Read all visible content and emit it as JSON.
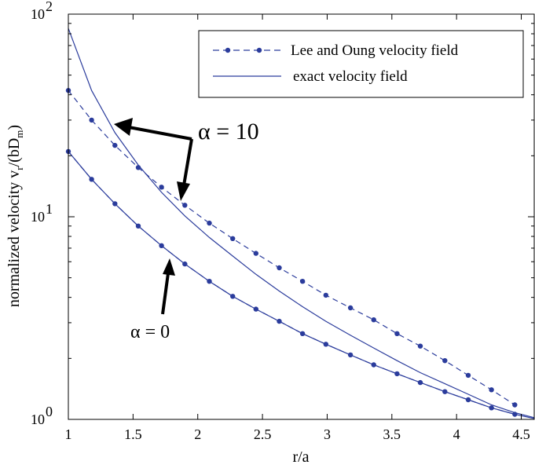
{
  "chart_data": {
    "type": "line",
    "title": "",
    "xlabel": "r/a",
    "ylabel": "normalized velocity v_r/(bD_m)",
    "xlim": [
      1,
      4.6
    ],
    "ylim": [
      1,
      100
    ],
    "yscale": "log",
    "grid": false,
    "legend_position": "top-right",
    "x_ticks": [
      1,
      1.5,
      2,
      2.5,
      3,
      3.5,
      4,
      4.5
    ],
    "x_tick_labels": [
      "1",
      "1.5",
      "2",
      "2.5",
      "3",
      "3.5",
      "4",
      "4.5"
    ],
    "y_ticks": [
      1,
      10,
      100
    ],
    "y_tick_labels": [
      {
        "base": "10",
        "exp": "0"
      },
      {
        "base": "10",
        "exp": "1"
      },
      {
        "base": "10",
        "exp": "2"
      }
    ],
    "legend": [
      {
        "label": "Lee and Oung velocity field",
        "style": "dashed-dots"
      },
      {
        "label": "exact velocity field",
        "style": "solid"
      }
    ],
    "series": [
      {
        "name": "Lee and Oung velocity field",
        "group": "α = 10",
        "style": "dashed-dots",
        "x": [
          1.0,
          1.18,
          1.36,
          1.54,
          1.72,
          1.9,
          2.09,
          2.27,
          2.45,
          2.63,
          2.81,
          2.99,
          3.18,
          3.36,
          3.54,
          3.72,
          3.91,
          4.09,
          4.27,
          4.45
        ],
        "y": [
          42.0,
          30.0,
          22.5,
          17.5,
          14.0,
          11.4,
          9.3,
          7.8,
          6.6,
          5.6,
          4.8,
          4.1,
          3.55,
          3.1,
          2.65,
          2.3,
          1.95,
          1.65,
          1.4,
          1.18
        ]
      },
      {
        "name": "exact velocity field",
        "group": "α = 10",
        "style": "solid",
        "x": [
          1.0,
          1.18,
          1.36,
          1.54,
          1.72,
          1.9,
          2.09,
          2.27,
          2.45,
          2.63,
          2.81,
          2.99,
          3.18,
          3.36,
          3.54,
          3.72,
          3.91,
          4.09,
          4.27,
          4.45,
          4.6
        ],
        "y": [
          85.0,
          42.0,
          26.0,
          18.0,
          13.2,
          10.1,
          7.9,
          6.4,
          5.2,
          4.3,
          3.6,
          3.05,
          2.6,
          2.25,
          1.95,
          1.7,
          1.5,
          1.33,
          1.18,
          1.08,
          1.02
        ]
      },
      {
        "name": "Lee and Oung velocity field",
        "group": "α = 0",
        "style": "dashed-dots",
        "x": [
          1.0,
          1.18,
          1.36,
          1.54,
          1.72,
          1.9,
          2.09,
          2.27,
          2.45,
          2.63,
          2.81,
          2.99,
          3.18,
          3.36,
          3.54,
          3.72,
          3.91,
          4.09,
          4.27,
          4.45
        ],
        "y": [
          21.0,
          15.3,
          11.6,
          9.0,
          7.2,
          5.85,
          4.8,
          4.05,
          3.5,
          3.05,
          2.65,
          2.35,
          2.08,
          1.86,
          1.68,
          1.52,
          1.37,
          1.25,
          1.14,
          1.06
        ]
      },
      {
        "name": "exact velocity field",
        "group": "α = 0",
        "style": "solid",
        "x": [
          1.0,
          1.18,
          1.36,
          1.54,
          1.72,
          1.9,
          2.09,
          2.27,
          2.45,
          2.63,
          2.81,
          2.99,
          3.18,
          3.36,
          3.54,
          3.72,
          3.91,
          4.09,
          4.27,
          4.45,
          4.6
        ],
        "y": [
          21.0,
          15.3,
          11.6,
          9.0,
          7.2,
          5.85,
          4.8,
          4.05,
          3.5,
          3.05,
          2.65,
          2.35,
          2.08,
          1.86,
          1.68,
          1.52,
          1.37,
          1.25,
          1.14,
          1.06,
          1.01
        ]
      }
    ],
    "annotations": [
      {
        "text": "α = 10",
        "size": "large",
        "arrow_targets": [
          {
            "x": 1.35,
            "y": 29
          },
          {
            "x": 1.85,
            "y": 10
          }
        ]
      },
      {
        "text": "α = 0",
        "size": "small",
        "arrow_targets": [
          {
            "x": 1.78,
            "y": 7.3
          }
        ]
      }
    ],
    "colors": {
      "line": "#2b3c9c",
      "marker": "#2b3c9c",
      "axis": "#000000",
      "arrow": "#000000"
    }
  }
}
